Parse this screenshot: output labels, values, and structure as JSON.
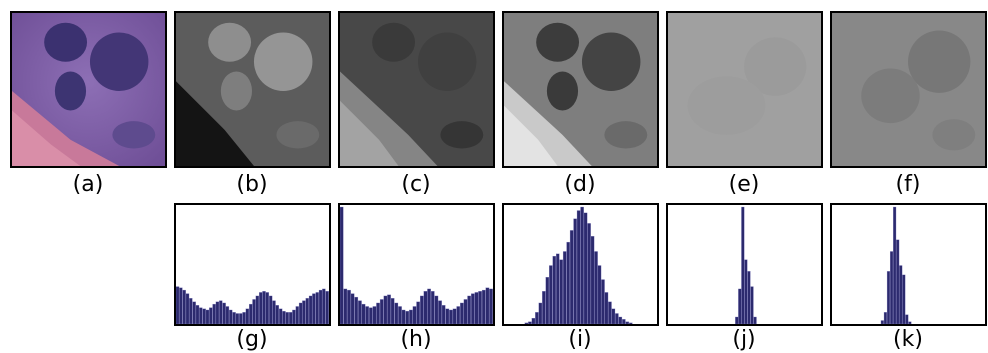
{
  "figure": {
    "top_labels": [
      "(a)",
      "(b)",
      "(c)",
      "(d)",
      "(e)",
      "(f)"
    ],
    "bottom_labels": [
      "(g)",
      "(h)",
      "(i)",
      "(j)",
      "(k)"
    ]
  },
  "panels": [
    {
      "id": "a",
      "kind": "color-image",
      "colors": {
        "bg": "#7a5aa5",
        "nucleus": "#3f3572",
        "stroma": "#c97a95"
      }
    },
    {
      "id": "b",
      "kind": "grayscale-channel",
      "colors": {
        "bg": "#5a5a5a",
        "nucleus": "#8a8a8a",
        "shadow": "#121212"
      }
    },
    {
      "id": "c",
      "kind": "grayscale-channel",
      "colors": {
        "bg": "#4a4a4a",
        "nucleus": "#3a3a3a",
        "streak": "#9a9a9a"
      }
    },
    {
      "id": "d",
      "kind": "grayscale-channel",
      "colors": {
        "bg": "#7c7c7c",
        "nucleus": "#3c3c3c",
        "streak": "#d5d5d5"
      }
    },
    {
      "id": "e",
      "kind": "grayscale-channel",
      "colors": {
        "bg": "#9e9e9e",
        "nucleus": "#9a9a9a"
      }
    },
    {
      "id": "f",
      "kind": "grayscale-channel",
      "colors": {
        "bg": "#858585",
        "nucleus": "#767676"
      }
    }
  ],
  "chart_data": [
    {
      "id": "g",
      "type": "bar",
      "color": "#2c2a6e",
      "values": [
        0.32,
        0.31,
        0.29,
        0.26,
        0.22,
        0.19,
        0.16,
        0.14,
        0.13,
        0.12,
        0.14,
        0.17,
        0.19,
        0.2,
        0.18,
        0.15,
        0.12,
        0.1,
        0.09,
        0.09,
        0.1,
        0.13,
        0.17,
        0.21,
        0.24,
        0.27,
        0.28,
        0.27,
        0.24,
        0.2,
        0.16,
        0.13,
        0.11,
        0.1,
        0.1,
        0.12,
        0.15,
        0.18,
        0.2,
        0.22,
        0.24,
        0.26,
        0.27,
        0.29,
        0.3,
        0.28
      ]
    },
    {
      "id": "h",
      "type": "bar",
      "color": "#2c2a6e",
      "values": [
        1.0,
        0.3,
        0.29,
        0.26,
        0.23,
        0.2,
        0.17,
        0.15,
        0.14,
        0.15,
        0.18,
        0.21,
        0.24,
        0.25,
        0.22,
        0.18,
        0.15,
        0.12,
        0.11,
        0.12,
        0.15,
        0.19,
        0.24,
        0.28,
        0.3,
        0.28,
        0.24,
        0.2,
        0.16,
        0.13,
        0.12,
        0.13,
        0.15,
        0.18,
        0.21,
        0.24,
        0.26,
        0.27,
        0.28,
        0.29,
        0.31,
        0.3
      ]
    },
    {
      "id": "i",
      "type": "bar",
      "color": "#2c2a6e",
      "values": [
        0,
        0,
        0,
        0,
        0,
        0,
        0.01,
        0.02,
        0.05,
        0.1,
        0.18,
        0.28,
        0.4,
        0.5,
        0.58,
        0.6,
        0.55,
        0.62,
        0.7,
        0.8,
        0.9,
        0.97,
        1.0,
        0.95,
        0.86,
        0.75,
        0.62,
        0.5,
        0.38,
        0.27,
        0.19,
        0.13,
        0.09,
        0.06,
        0.04,
        0.02,
        0.01,
        0,
        0,
        0,
        0,
        0,
        0,
        0
      ]
    },
    {
      "id": "j",
      "type": "bar",
      "color": "#2c2a6e",
      "values": [
        0,
        0,
        0,
        0,
        0,
        0,
        0,
        0,
        0,
        0,
        0,
        0,
        0,
        0,
        0,
        0,
        0,
        0,
        0,
        0,
        0,
        0,
        0.06,
        0.3,
        1.0,
        0.55,
        0.45,
        0.32,
        0.06,
        0,
        0,
        0,
        0,
        0,
        0,
        0,
        0,
        0,
        0,
        0,
        0,
        0,
        0,
        0,
        0,
        0,
        0,
        0,
        0,
        0
      ]
    },
    {
      "id": "k",
      "type": "bar",
      "color": "#2c2a6e",
      "values": [
        0,
        0,
        0,
        0,
        0,
        0,
        0,
        0,
        0,
        0,
        0,
        0,
        0,
        0,
        0,
        0,
        0.03,
        0.1,
        0.45,
        0.62,
        1.0,
        0.72,
        0.5,
        0.42,
        0.08,
        0.02,
        0,
        0,
        0,
        0,
        0,
        0,
        0,
        0,
        0,
        0,
        0,
        0,
        0,
        0,
        0,
        0,
        0,
        0,
        0,
        0,
        0,
        0,
        0,
        0
      ]
    }
  ]
}
